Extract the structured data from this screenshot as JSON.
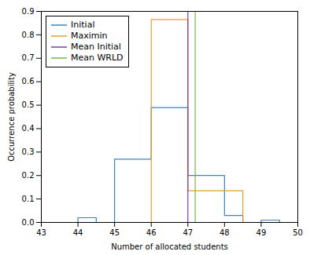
{
  "chart_data": {
    "type": "line",
    "xlabel": "Number of allocated students",
    "ylabel": "Occurrence probability",
    "xlim": [
      43,
      50
    ],
    "ylim": [
      0,
      0.9
    ],
    "xticks": [
      43,
      44,
      45,
      46,
      47,
      48,
      49,
      50
    ],
    "yticks": [
      {
        "value": 0.0,
        "label": "0.0"
      },
      0.1,
      0.2,
      0.3,
      0.4,
      0.5,
      0.6,
      0.7,
      0.8,
      0.9
    ],
    "grid": false,
    "legend": "upper left",
    "series": [
      {
        "name": "Initial",
        "color": "#3B82C4",
        "type": "line",
        "x": [
          43,
          44,
          44,
          44.5,
          44.5,
          45,
          45,
          46,
          46,
          47,
          47,
          48,
          48,
          48.5,
          48.5,
          49,
          49,
          49.5,
          49.5,
          50
        ],
        "values": [
          0.0,
          0.0,
          0.02,
          0.02,
          0.0,
          0.0,
          0.27,
          0.27,
          0.49,
          0.49,
          0.2,
          0.2,
          0.03,
          0.03,
          0.0,
          0.0,
          0.01,
          0.01,
          0.0,
          0.0
        ]
      },
      {
        "name": "Maximin",
        "color": "#E8A020",
        "type": "line",
        "x": [
          43,
          46,
          46,
          47,
          47,
          48.5,
          48.5,
          50
        ],
        "values": [
          0.0,
          0.0,
          0.865,
          0.865,
          0.135,
          0.135,
          0.0,
          0.0
        ]
      },
      {
        "name": "Mean Initial",
        "color": "#7B3FA0",
        "type": "vline",
        "x": 47.0
      },
      {
        "name": "Mean WRLD",
        "color": "#7DB347",
        "type": "vline",
        "x": 47.2
      }
    ]
  }
}
